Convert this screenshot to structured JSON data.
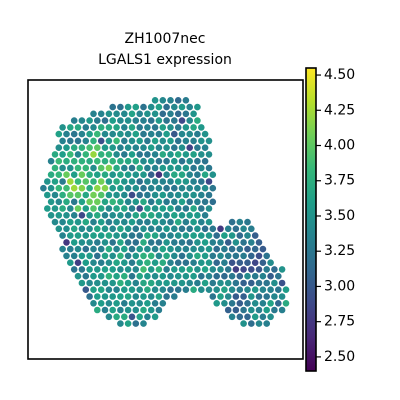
{
  "chart_data": {
    "type": "scatter",
    "title": "ZH1007nec",
    "subtitle": "LGALS1 expression",
    "xlabel": "",
    "ylabel": "",
    "grid": false,
    "colormap": "viridis",
    "colorbar": {
      "vmin": 2.4,
      "vmax": 4.55,
      "ticks": [
        4.5,
        4.25,
        4.0,
        3.75,
        3.5,
        3.25,
        3.0,
        2.75,
        2.5
      ],
      "tick_labels": [
        "4.50",
        "4.25",
        "4.00",
        "3.75",
        "3.50",
        "3.25",
        "3.00",
        "2.75",
        "2.50"
      ]
    },
    "spot_grid": {
      "pitch": 0.028,
      "base_value": 3.45,
      "noise": 0.12,
      "seed": 7
    },
    "tissue_outline": [
      [
        0.12,
        0.16
      ],
      [
        0.2,
        0.13
      ],
      [
        0.33,
        0.09
      ],
      [
        0.48,
        0.07
      ],
      [
        0.58,
        0.07
      ],
      [
        0.62,
        0.09
      ],
      [
        0.63,
        0.14
      ],
      [
        0.66,
        0.19
      ],
      [
        0.66,
        0.26
      ],
      [
        0.68,
        0.33
      ],
      [
        0.68,
        0.42
      ],
      [
        0.66,
        0.48
      ],
      [
        0.67,
        0.53
      ],
      [
        0.72,
        0.51
      ],
      [
        0.78,
        0.49
      ],
      [
        0.83,
        0.52
      ],
      [
        0.86,
        0.57
      ],
      [
        0.89,
        0.64
      ],
      [
        0.93,
        0.68
      ],
      [
        0.95,
        0.74
      ],
      [
        0.94,
        0.81
      ],
      [
        0.9,
        0.86
      ],
      [
        0.84,
        0.89
      ],
      [
        0.78,
        0.88
      ],
      [
        0.72,
        0.84
      ],
      [
        0.68,
        0.8
      ],
      [
        0.61,
        0.75
      ],
      [
        0.53,
        0.78
      ],
      [
        0.47,
        0.85
      ],
      [
        0.4,
        0.89
      ],
      [
        0.32,
        0.88
      ],
      [
        0.26,
        0.84
      ],
      [
        0.22,
        0.8
      ],
      [
        0.19,
        0.74
      ],
      [
        0.15,
        0.68
      ],
      [
        0.12,
        0.6
      ],
      [
        0.1,
        0.55
      ],
      [
        0.07,
        0.48
      ],
      [
        0.05,
        0.4
      ],
      [
        0.07,
        0.32
      ],
      [
        0.1,
        0.24
      ]
    ],
    "high_regions": [
      {
        "x": 0.21,
        "y": 0.37,
        "r": 0.15,
        "boost": 0.85
      },
      {
        "x": 0.27,
        "y": 0.25,
        "r": 0.09,
        "boost": 0.55
      },
      {
        "x": 0.45,
        "y": 0.65,
        "r": 0.08,
        "boost": 0.35
      },
      {
        "x": 0.33,
        "y": 0.68,
        "r": 0.07,
        "boost": 0.3
      }
    ],
    "low_regions": [
      {
        "x": 0.8,
        "y": 0.65,
        "r": 0.16,
        "boost": -0.55
      },
      {
        "x": 0.76,
        "y": 0.82,
        "r": 0.08,
        "boost": -0.45
      },
      {
        "x": 0.66,
        "y": 0.4,
        "r": 0.05,
        "boost": -0.4
      },
      {
        "x": 0.52,
        "y": 0.1,
        "r": 0.06,
        "boost": -0.2
      }
    ]
  }
}
